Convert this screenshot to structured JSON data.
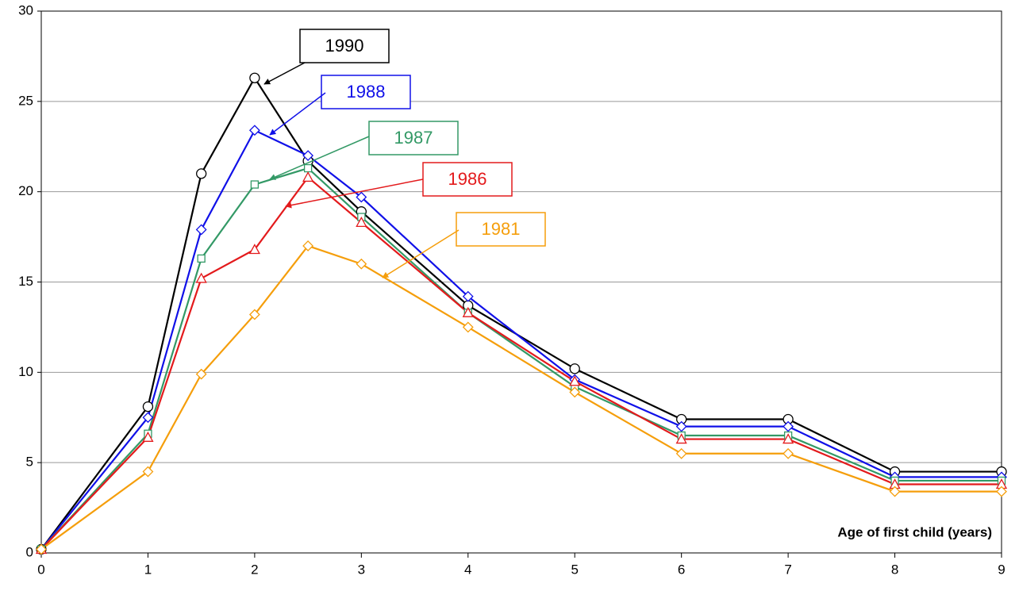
{
  "chart_data": {
    "type": "line",
    "x_label": "Age of first child (years)",
    "x": [
      0,
      1,
      1.5,
      2,
      2.5,
      3,
      4,
      5,
      6,
      7,
      8,
      9
    ],
    "xlim": [
      0,
      9
    ],
    "xticks": [
      0,
      1,
      2,
      3,
      4,
      5,
      6,
      7,
      8,
      9
    ],
    "ylim": [
      0,
      30
    ],
    "yticks": [
      0,
      5,
      10,
      15,
      20,
      25,
      30
    ],
    "grid": true,
    "series": [
      {
        "name": "1990",
        "color": "#000000",
        "marker": "circle",
        "values": [
          0.2,
          8.1,
          21.0,
          26.3,
          21.7,
          18.9,
          13.7,
          10.2,
          7.4,
          7.4,
          4.5,
          4.5
        ]
      },
      {
        "name": "1988",
        "color": "#1010e8",
        "marker": "diamond",
        "values": [
          0.2,
          7.5,
          17.9,
          23.4,
          22.0,
          19.7,
          14.2,
          9.6,
          7.0,
          7.0,
          4.2,
          4.2
        ]
      },
      {
        "name": "1987",
        "color": "#339966",
        "marker": "square",
        "values": [
          0.2,
          6.6,
          16.3,
          20.4,
          21.3,
          18.6,
          13.3,
          9.2,
          6.5,
          6.5,
          4.0,
          4.0
        ]
      },
      {
        "name": "1986",
        "color": "#e31a1c",
        "marker": "triangle",
        "values": [
          0.2,
          6.4,
          15.2,
          16.8,
          20.8,
          18.3,
          13.3,
          9.5,
          6.3,
          6.3,
          3.8,
          3.8
        ]
      },
      {
        "name": "1981",
        "color": "#f59e0b",
        "marker": "diamond",
        "values": [
          0.2,
          4.5,
          9.9,
          13.2,
          17.0,
          16.0,
          12.5,
          8.9,
          5.5,
          5.5,
          3.4,
          3.4
        ]
      }
    ]
  }
}
